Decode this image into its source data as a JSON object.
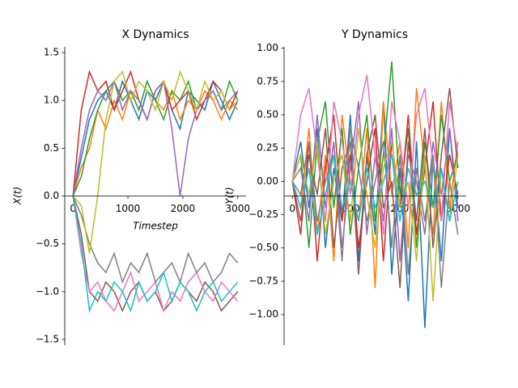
{
  "chart_data": [
    {
      "type": "line",
      "title": "X Dynamics",
      "xlabel": "Timestep",
      "ylabel": "X(t)",
      "x": [
        0,
        150,
        300,
        450,
        600,
        750,
        900,
        1050,
        1200,
        1350,
        1500,
        1650,
        1800,
        1950,
        2100,
        2250,
        2400,
        2550,
        2700,
        2850,
        3000
      ],
      "xlim": [
        -150,
        3150
      ],
      "xticks": [
        0,
        1000,
        2000,
        3000
      ],
      "ylim": [
        -1.56,
        1.56
      ],
      "yticks": [
        {
          "value": -1.5,
          "label": "−1.5"
        },
        {
          "value": -1.0,
          "label": "−1.0"
        },
        {
          "value": -0.5,
          "label": "−0.5"
        },
        {
          "value": 0,
          "label": "0.0"
        },
        0.5,
        {
          "value": 1.0,
          "label": "1.0"
        },
        1.5
      ],
      "series": [
        {
          "color": "#1f77b4",
          "values": [
            0,
            0.4,
            0.8,
            1.0,
            1.1,
            0.9,
            1.2,
            1.0,
            0.8,
            1.1,
            1.0,
            1.2,
            0.9,
            0.7,
            1.1,
            1.0,
            0.9,
            1.2,
            1.0,
            0.8,
            1.0
          ]
        },
        {
          "color": "#ff7f0e",
          "values": [
            0,
            0.3,
            0.5,
            0.9,
            0.7,
            1.0,
            0.8,
            1.1,
            0.9,
            1.2,
            1.0,
            0.9,
            1.1,
            0.8,
            1.0,
            0.9,
            1.1,
            1.0,
            0.8,
            1.0,
            0.9
          ]
        },
        {
          "color": "#2ca02c",
          "values": [
            0,
            0.2,
            0.6,
            0.9,
            1.1,
            1.2,
            1.0,
            1.1,
            0.9,
            1.2,
            1.0,
            0.8,
            1.1,
            1.0,
            1.2,
            0.9,
            1.0,
            1.1,
            0.9,
            1.2,
            1.0
          ]
        },
        {
          "color": "#d62728",
          "values": [
            0,
            0.9,
            1.3,
            1.1,
            1.2,
            0.9,
            1.1,
            1.3,
            1.0,
            0.8,
            1.1,
            1.2,
            0.9,
            1.0,
            1.1,
            0.8,
            1.0,
            1.2,
            1.1,
            0.9,
            1.1
          ]
        },
        {
          "color": "#9467bd",
          "values": [
            0,
            0.5,
            0.9,
            1.1,
            1.0,
            1.2,
            0.9,
            1.1,
            1.0,
            0.8,
            1.1,
            1.2,
            0.7,
            0.0,
            0.6,
            0.9,
            1.0,
            1.1,
            0.9,
            1.0,
            1.1
          ]
        },
        {
          "color": "#8c564b",
          "values": [
            0,
            -0.4,
            -1.0,
            -1.1,
            -0.9,
            -1.0,
            -1.2,
            -1.0,
            -0.9,
            -1.1,
            -1.0,
            -1.2,
            -1.1,
            -0.9,
            -1.0,
            -1.1,
            -0.9,
            -1.0,
            -1.2,
            -1.1,
            -1.0
          ]
        },
        {
          "color": "#e377c2",
          "values": [
            0,
            -0.6,
            -1.0,
            -0.9,
            -1.1,
            -1.2,
            -1.0,
            -0.8,
            -1.1,
            -1.0,
            -0.9,
            -1.2,
            -1.0,
            -1.1,
            -0.9,
            -0.8,
            -1.0,
            -1.1,
            -0.9,
            -1.0,
            -1.1
          ]
        },
        {
          "color": "#7f7f7f",
          "values": [
            0,
            -0.2,
            -0.5,
            -0.7,
            -0.8,
            -0.6,
            -0.9,
            -0.7,
            -0.8,
            -0.6,
            -0.9,
            -0.8,
            -0.7,
            -0.9,
            -0.6,
            -0.8,
            -0.7,
            -0.9,
            -0.8,
            -0.6,
            -0.7
          ]
        },
        {
          "color": "#bcbd22",
          "values": [
            0,
            -0.1,
            -0.6,
            0.0,
            0.8,
            1.2,
            1.3,
            1.0,
            1.2,
            1.1,
            0.9,
            1.2,
            1.0,
            1.3,
            1.1,
            0.9,
            1.2,
            1.0,
            1.1,
            0.9,
            1.0
          ]
        },
        {
          "color": "#17becf",
          "values": [
            0,
            -0.5,
            -1.2,
            -1.0,
            -1.1,
            -0.9,
            -1.0,
            -1.2,
            -0.9,
            -1.1,
            -1.0,
            -0.8,
            -1.1,
            -0.9,
            -1.0,
            -1.2,
            -1.0,
            -0.9,
            -1.1,
            -1.0,
            -0.9
          ]
        }
      ]
    },
    {
      "type": "line",
      "title": "Y Dynamics",
      "ylabel": "Y(t)",
      "x": [
        0,
        150,
        300,
        450,
        600,
        750,
        900,
        1050,
        1200,
        1350,
        1500,
        1650,
        1800,
        1950,
        2100,
        2250,
        2400,
        2550,
        2700,
        2850,
        3000
      ],
      "xlim": [
        -150,
        3150
      ],
      "xticks": [
        0,
        1000,
        2000,
        3000
      ],
      "ylim": [
        -1.23,
        1.01
      ],
      "yticks": [
        {
          "value": -1.0,
          "label": "−1.00"
        },
        {
          "value": -0.75,
          "label": "−0.75"
        },
        {
          "value": -0.5,
          "label": "−0.50"
        },
        {
          "value": -0.25,
          "label": "−0.25"
        },
        {
          "value": 0,
          "label": "0.00"
        },
        {
          "value": 0.25,
          "label": "0.25"
        },
        {
          "value": 0.5,
          "label": "0.50"
        },
        {
          "value": 0.75,
          "label": "0.75"
        },
        {
          "value": 1.0,
          "label": "1.00"
        }
      ],
      "series": [
        {
          "color": "#1f77b4",
          "values": [
            0,
            0.3,
            -0.2,
            0.4,
            -0.5,
            0.1,
            -0.3,
            0.5,
            -0.6,
            0.2,
            -0.4,
            0.6,
            -0.7,
            0.1,
            -0.9,
            0.3,
            -1.1,
            0.2,
            -0.6,
            0.4,
            -0.2
          ]
        },
        {
          "color": "#ff7f0e",
          "values": [
            0,
            -0.2,
            0.4,
            -0.4,
            0.2,
            -0.6,
            0.5,
            0.0,
            -0.3,
            0.4,
            -0.8,
            0.6,
            -0.1,
            0.3,
            -0.5,
            0.7,
            0.1,
            -0.4,
            0.6,
            -0.2,
            0.3
          ]
        },
        {
          "color": "#2ca02c",
          "values": [
            0,
            0.2,
            -0.5,
            0.3,
            0.6,
            -0.2,
            0.4,
            -0.4,
            0.1,
            0.5,
            -0.3,
            0.2,
            0.9,
            -0.1,
            0.4,
            -0.5,
            0.3,
            -0.2,
            0.5,
            0.0,
            0.2
          ]
        },
        {
          "color": "#d62728",
          "values": [
            0,
            -0.4,
            0.3,
            -0.6,
            0.1,
            0.5,
            -0.3,
            0.2,
            -0.5,
            0.0,
            0.4,
            -0.6,
            0.3,
            -0.2,
            0.5,
            -0.4,
            0.1,
            0.6,
            -0.3,
            0.2,
            -0.1
          ]
        },
        {
          "color": "#9467bd",
          "values": [
            0,
            0.1,
            -0.3,
            0.5,
            -0.2,
            0.3,
            -0.5,
            0.1,
            0.6,
            -0.4,
            0.2,
            -0.3,
            0.4,
            -0.6,
            0.2,
            0.0,
            -0.4,
            0.3,
            -0.1,
            0.4,
            -0.3
          ]
        },
        {
          "color": "#8c564b",
          "values": [
            0,
            -0.3,
            0.2,
            -0.1,
            0.4,
            -0.5,
            0.1,
            0.3,
            -0.7,
            0.2,
            0.5,
            -0.2,
            0.0,
            -0.8,
            0.3,
            -0.3,
            0.4,
            -0.5,
            0.2,
            0.7,
            0.1
          ]
        },
        {
          "color": "#e377c2",
          "values": [
            0,
            0.5,
            0.7,
            0.2,
            -0.3,
            0.6,
            0.3,
            -0.1,
            0.5,
            0.8,
            0.2,
            -0.4,
            0.6,
            0.3,
            -0.2,
            0.5,
            0.7,
            0.1,
            -0.3,
            0.6,
            0.2
          ]
        },
        {
          "color": "#7f7f7f",
          "values": [
            0,
            -0.1,
            0.3,
            -0.3,
            0.0,
            0.2,
            -0.6,
            0.4,
            0.1,
            -0.3,
            0.0,
            0.3,
            -0.5,
            0.2,
            -0.7,
            0.1,
            -0.3,
            0.2,
            -0.8,
            0.0,
            -0.4
          ]
        },
        {
          "color": "#bcbd22",
          "values": [
            0,
            0.2,
            -0.1,
            0.3,
            -0.4,
            0.0,
            0.2,
            -0.3,
            0.4,
            -0.1,
            -0.5,
            0.1,
            0.3,
            -0.2,
            0.0,
            -0.6,
            0.2,
            -0.9,
            0.1,
            -0.3,
            0.2
          ]
        },
        {
          "color": "#17becf",
          "values": [
            0,
            -0.2,
            0.1,
            -0.4,
            -0.1,
            0.2,
            -0.2,
            0.0,
            -0.3,
            0.1,
            -0.2,
            0.0,
            0.2,
            -0.3,
            0.1,
            -0.1,
            0.0,
            -0.2,
            0.1,
            -0.3,
            0.0
          ]
        }
      ]
    }
  ]
}
